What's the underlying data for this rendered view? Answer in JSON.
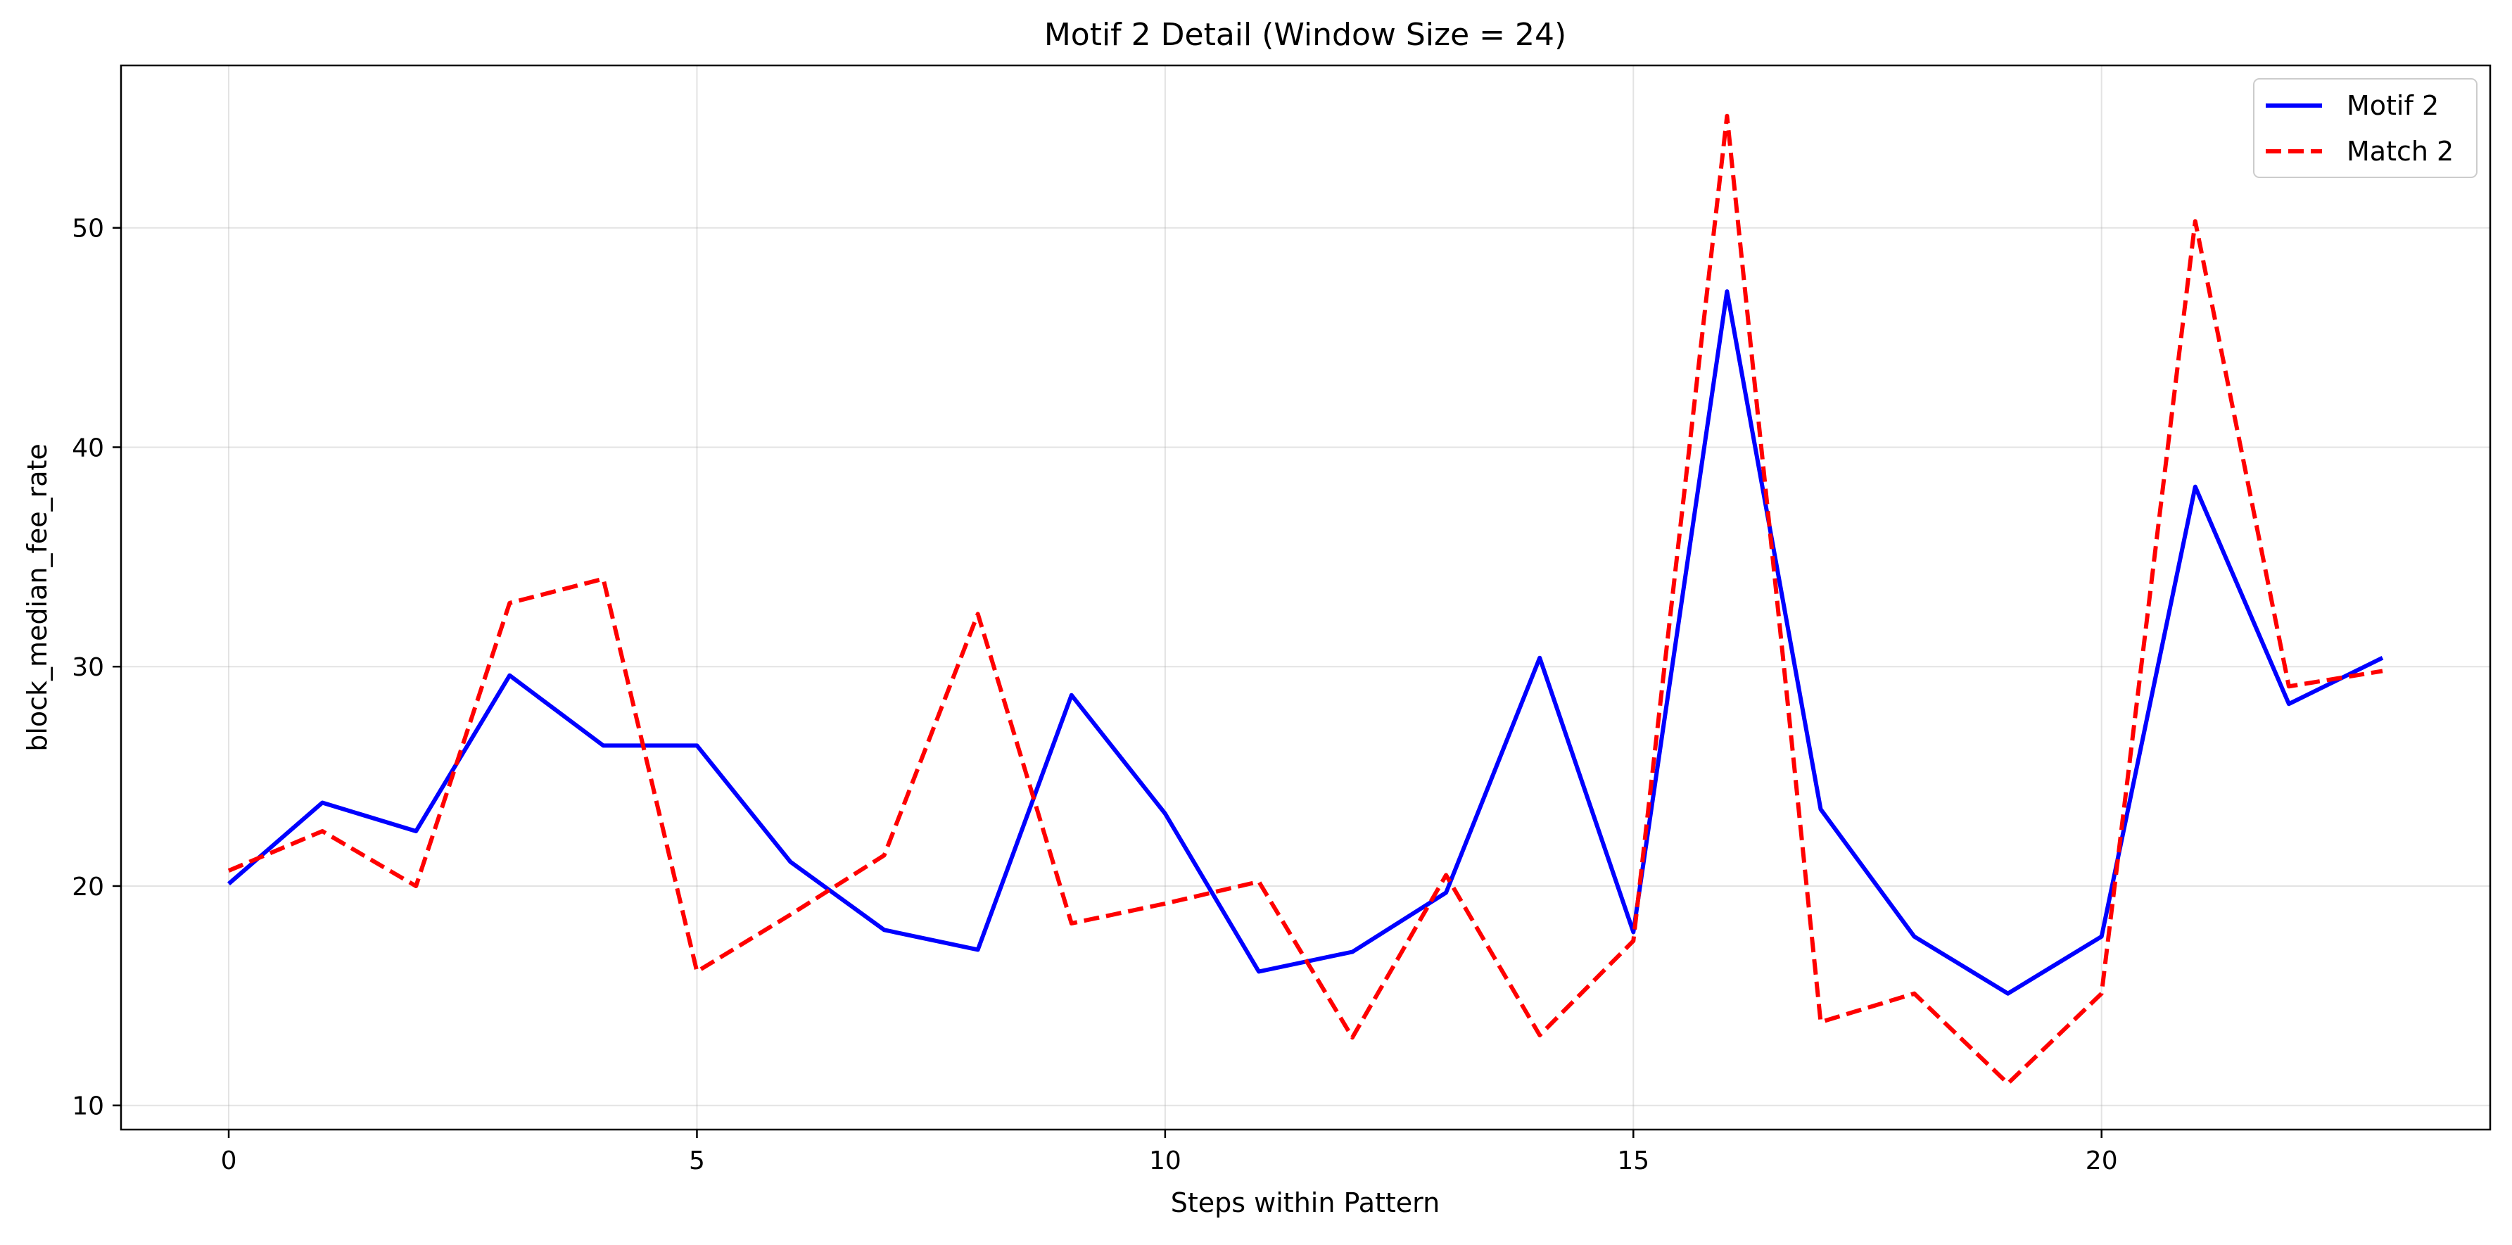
{
  "chart_data": {
    "type": "line",
    "title": "Motif 2 Detail (Window Size = 24)",
    "xlabel": "Steps within Pattern",
    "ylabel": "block_median_fee_rate",
    "xlim": [
      -1.15,
      24.15
    ],
    "ylim": [
      8.9,
      57.4
    ],
    "xticks": [
      0,
      5,
      10,
      15,
      20
    ],
    "yticks": [
      10,
      20,
      30,
      40,
      50
    ],
    "grid": true,
    "legend_position": "top-right",
    "x": [
      0,
      1,
      2,
      3,
      4,
      5,
      6,
      7,
      8,
      9,
      10,
      11,
      12,
      13,
      14,
      15,
      16,
      17,
      18,
      19,
      20,
      21,
      22,
      23
    ],
    "series": [
      {
        "name": "Motif 2",
        "color": "#0000ff",
        "style": "solid",
        "values": [
          20.1,
          23.8,
          22.5,
          29.6,
          26.4,
          26.4,
          21.1,
          18.0,
          17.1,
          28.7,
          23.3,
          16.1,
          17.0,
          19.7,
          30.4,
          17.9,
          47.1,
          23.5,
          17.7,
          15.1,
          17.7,
          38.2,
          28.3,
          30.4
        ]
      },
      {
        "name": "Match 2",
        "color": "#ff0000",
        "style": "dashed",
        "values": [
          20.7,
          22.5,
          20.0,
          32.9,
          34.0,
          16.1,
          18.7,
          21.4,
          32.4,
          18.3,
          19.2,
          20.2,
          13.1,
          20.5,
          13.2,
          17.5,
          55.1,
          13.8,
          15.1,
          11.0,
          15.1,
          50.3,
          29.1,
          29.8
        ]
      }
    ]
  }
}
